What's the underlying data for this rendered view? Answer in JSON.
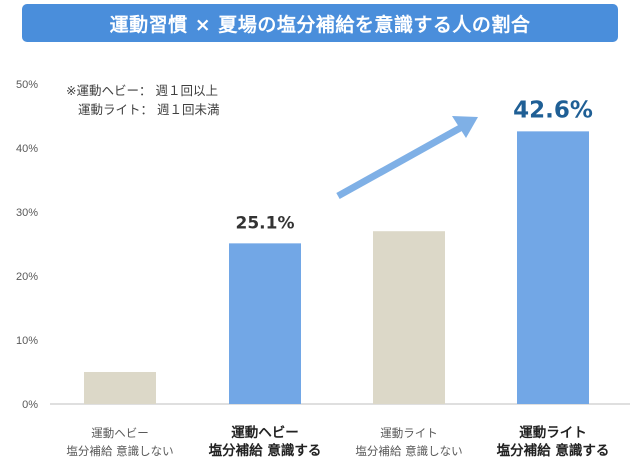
{
  "title": "運動習慣 × 夏場の塩分補給を意識する人の割合",
  "note": [
    "※運動ヘビー： 週１回以上",
    "運動ライト： 週１回未満"
  ],
  "colors": {
    "banner": "#4a8edb",
    "bar_gray": "#dcd8c8",
    "bar_blue": "#72a7e6",
    "arrow": "#7fb0e6",
    "accent_text": "#1f5f95"
  },
  "chart_data": {
    "type": "bar",
    "ylim": [
      0,
      50
    ],
    "y_ticks": [
      "0%",
      "10%",
      "20%",
      "30%",
      "40%",
      "50%"
    ],
    "categories": [
      [
        "運動ヘビー",
        "塩分補給 意識しない"
      ],
      [
        "運動ヘビー",
        "塩分補給 意識する"
      ],
      [
        "運動ライト",
        "塩分補給 意識しない"
      ],
      [
        "運動ライト",
        "塩分補給 意識する"
      ]
    ],
    "values": [
      5,
      25.1,
      27,
      42.6
    ],
    "bar_color": [
      "gray",
      "blue",
      "gray",
      "blue"
    ],
    "emphasized": [
      false,
      true,
      false,
      true
    ],
    "data_labels": [
      "",
      "25.1%",
      "",
      "42.6%"
    ],
    "grid": false,
    "annotations": [
      {
        "type": "arrow",
        "from_bar": 1,
        "to_bar": 3
      }
    ]
  }
}
